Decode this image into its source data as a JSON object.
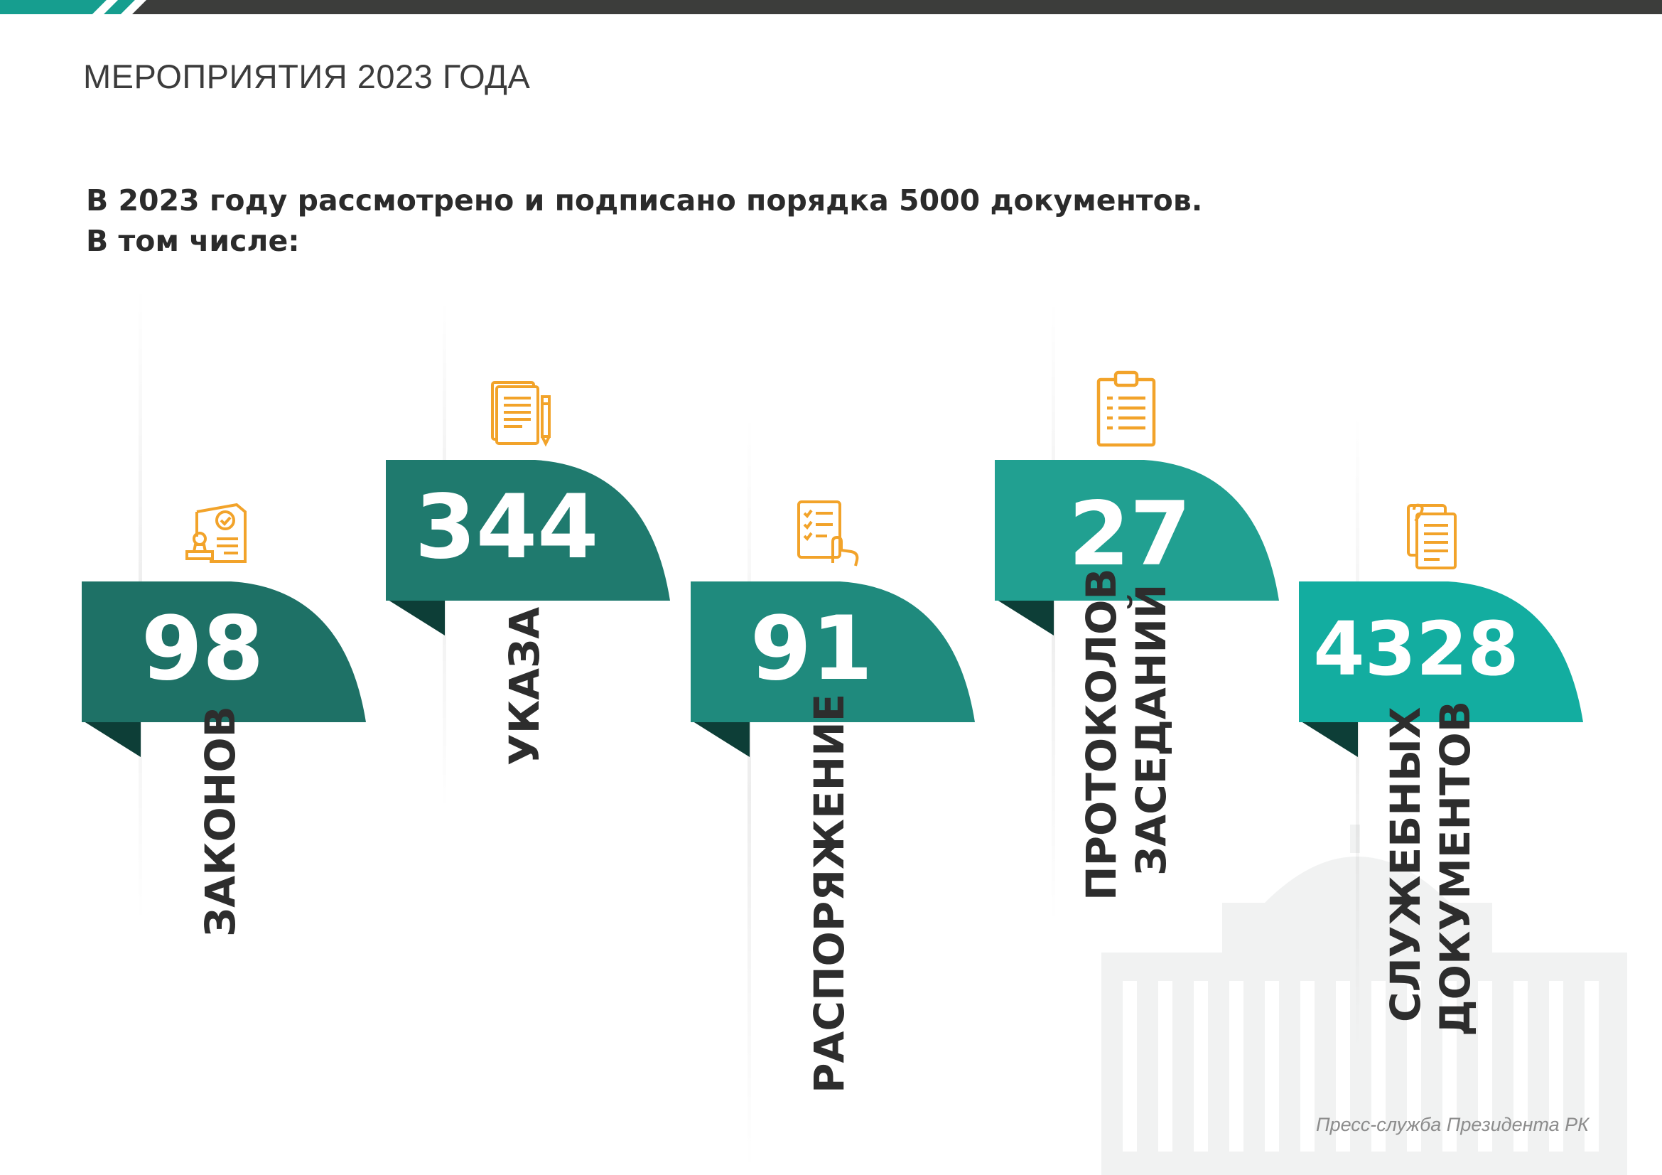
{
  "header": {
    "title": "МЕРОПРИЯТИЯ 2023 ГОДА"
  },
  "intro": {
    "line1": "В 2023 году рассмотрено и подписано порядка 5000 документов.",
    "line2": "В том числе:"
  },
  "stats": [
    {
      "value": "98",
      "label": "ЗАКОНОВ",
      "icon": "stamp-document-icon",
      "color": "#1e7166"
    },
    {
      "value": "344",
      "label": "УКАЗА",
      "icon": "document-pen-icon",
      "color": "#1f7a6e"
    },
    {
      "value": "91",
      "label": "РАСПОРЯЖЕНИЕ",
      "icon": "checklist-hand-icon",
      "color": "#1f8a7d"
    },
    {
      "value": "27",
      "label_line1": "ПРОТОКОЛОВ",
      "label_line2": "ЗАСЕДАНИЙ",
      "icon": "clipboard-list-icon",
      "color": "#21a091"
    },
    {
      "value": "4328",
      "label_line1": "СЛУЖЕБНЫХ",
      "label_line2": "ДОКУМЕНТОВ",
      "icon": "documents-stack-icon",
      "color": "#13ada0"
    }
  ],
  "colors": {
    "icon_accent": "#f2a32a",
    "top_bar": "#3c3d3b",
    "stripe_accent": "#169e8f"
  },
  "footer": {
    "credit": "Пресс-служба Президента РК"
  }
}
